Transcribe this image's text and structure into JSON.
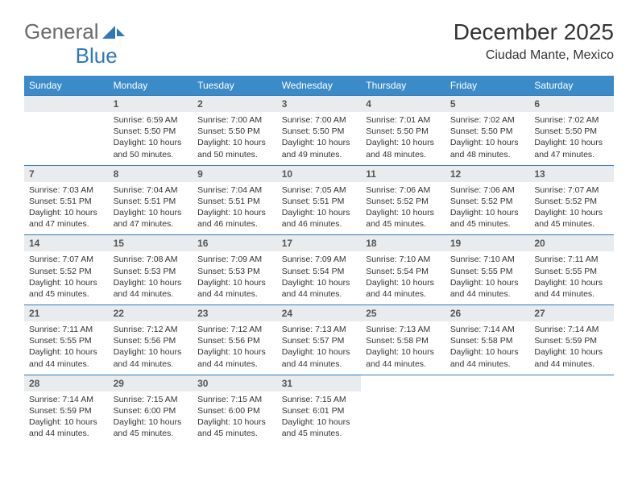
{
  "brand": {
    "part1": "General",
    "part2": "Blue"
  },
  "title": "December 2025",
  "subtitle": "Ciudad Mante, Mexico",
  "colors": {
    "header_bg": "#3b8bc8",
    "header_text": "#ffffff",
    "daynum_bg": "#e9ecef",
    "border": "#2f79b9",
    "text": "#333333",
    "brand_blue": "#2f79b9",
    "brand_gray": "#6a6a6a",
    "page_bg": "#ffffff"
  },
  "fonts": {
    "title_size_pt": 21,
    "subtitle_size_pt": 12,
    "header_size_pt": 9,
    "cell_size_pt": 8,
    "daynum_size_pt": 9
  },
  "weekdays": [
    "Sunday",
    "Monday",
    "Tuesday",
    "Wednesday",
    "Thursday",
    "Friday",
    "Saturday"
  ],
  "layout": {
    "columns": 7,
    "rows": 5,
    "first_weekday_index": 1,
    "last_day": 31
  },
  "days": {
    "1": {
      "sunrise": "6:59 AM",
      "sunset": "5:50 PM",
      "daylight": "10 hours and 50 minutes."
    },
    "2": {
      "sunrise": "7:00 AM",
      "sunset": "5:50 PM",
      "daylight": "10 hours and 50 minutes."
    },
    "3": {
      "sunrise": "7:00 AM",
      "sunset": "5:50 PM",
      "daylight": "10 hours and 49 minutes."
    },
    "4": {
      "sunrise": "7:01 AM",
      "sunset": "5:50 PM",
      "daylight": "10 hours and 48 minutes."
    },
    "5": {
      "sunrise": "7:02 AM",
      "sunset": "5:50 PM",
      "daylight": "10 hours and 48 minutes."
    },
    "6": {
      "sunrise": "7:02 AM",
      "sunset": "5:50 PM",
      "daylight": "10 hours and 47 minutes."
    },
    "7": {
      "sunrise": "7:03 AM",
      "sunset": "5:51 PM",
      "daylight": "10 hours and 47 minutes."
    },
    "8": {
      "sunrise": "7:04 AM",
      "sunset": "5:51 PM",
      "daylight": "10 hours and 47 minutes."
    },
    "9": {
      "sunrise": "7:04 AM",
      "sunset": "5:51 PM",
      "daylight": "10 hours and 46 minutes."
    },
    "10": {
      "sunrise": "7:05 AM",
      "sunset": "5:51 PM",
      "daylight": "10 hours and 46 minutes."
    },
    "11": {
      "sunrise": "7:06 AM",
      "sunset": "5:52 PM",
      "daylight": "10 hours and 45 minutes."
    },
    "12": {
      "sunrise": "7:06 AM",
      "sunset": "5:52 PM",
      "daylight": "10 hours and 45 minutes."
    },
    "13": {
      "sunrise": "7:07 AM",
      "sunset": "5:52 PM",
      "daylight": "10 hours and 45 minutes."
    },
    "14": {
      "sunrise": "7:07 AM",
      "sunset": "5:52 PM",
      "daylight": "10 hours and 45 minutes."
    },
    "15": {
      "sunrise": "7:08 AM",
      "sunset": "5:53 PM",
      "daylight": "10 hours and 44 minutes."
    },
    "16": {
      "sunrise": "7:09 AM",
      "sunset": "5:53 PM",
      "daylight": "10 hours and 44 minutes."
    },
    "17": {
      "sunrise": "7:09 AM",
      "sunset": "5:54 PM",
      "daylight": "10 hours and 44 minutes."
    },
    "18": {
      "sunrise": "7:10 AM",
      "sunset": "5:54 PM",
      "daylight": "10 hours and 44 minutes."
    },
    "19": {
      "sunrise": "7:10 AM",
      "sunset": "5:55 PM",
      "daylight": "10 hours and 44 minutes."
    },
    "20": {
      "sunrise": "7:11 AM",
      "sunset": "5:55 PM",
      "daylight": "10 hours and 44 minutes."
    },
    "21": {
      "sunrise": "7:11 AM",
      "sunset": "5:55 PM",
      "daylight": "10 hours and 44 minutes."
    },
    "22": {
      "sunrise": "7:12 AM",
      "sunset": "5:56 PM",
      "daylight": "10 hours and 44 minutes."
    },
    "23": {
      "sunrise": "7:12 AM",
      "sunset": "5:56 PM",
      "daylight": "10 hours and 44 minutes."
    },
    "24": {
      "sunrise": "7:13 AM",
      "sunset": "5:57 PM",
      "daylight": "10 hours and 44 minutes."
    },
    "25": {
      "sunrise": "7:13 AM",
      "sunset": "5:58 PM",
      "daylight": "10 hours and 44 minutes."
    },
    "26": {
      "sunrise": "7:14 AM",
      "sunset": "5:58 PM",
      "daylight": "10 hours and 44 minutes."
    },
    "27": {
      "sunrise": "7:14 AM",
      "sunset": "5:59 PM",
      "daylight": "10 hours and 44 minutes."
    },
    "28": {
      "sunrise": "7:14 AM",
      "sunset": "5:59 PM",
      "daylight": "10 hours and 44 minutes."
    },
    "29": {
      "sunrise": "7:15 AM",
      "sunset": "6:00 PM",
      "daylight": "10 hours and 45 minutes."
    },
    "30": {
      "sunrise": "7:15 AM",
      "sunset": "6:00 PM",
      "daylight": "10 hours and 45 minutes."
    },
    "31": {
      "sunrise": "7:15 AM",
      "sunset": "6:01 PM",
      "daylight": "10 hours and 45 minutes."
    }
  },
  "labels": {
    "sunrise_prefix": "Sunrise: ",
    "sunset_prefix": "Sunset: ",
    "daylight_prefix": "Daylight: "
  }
}
